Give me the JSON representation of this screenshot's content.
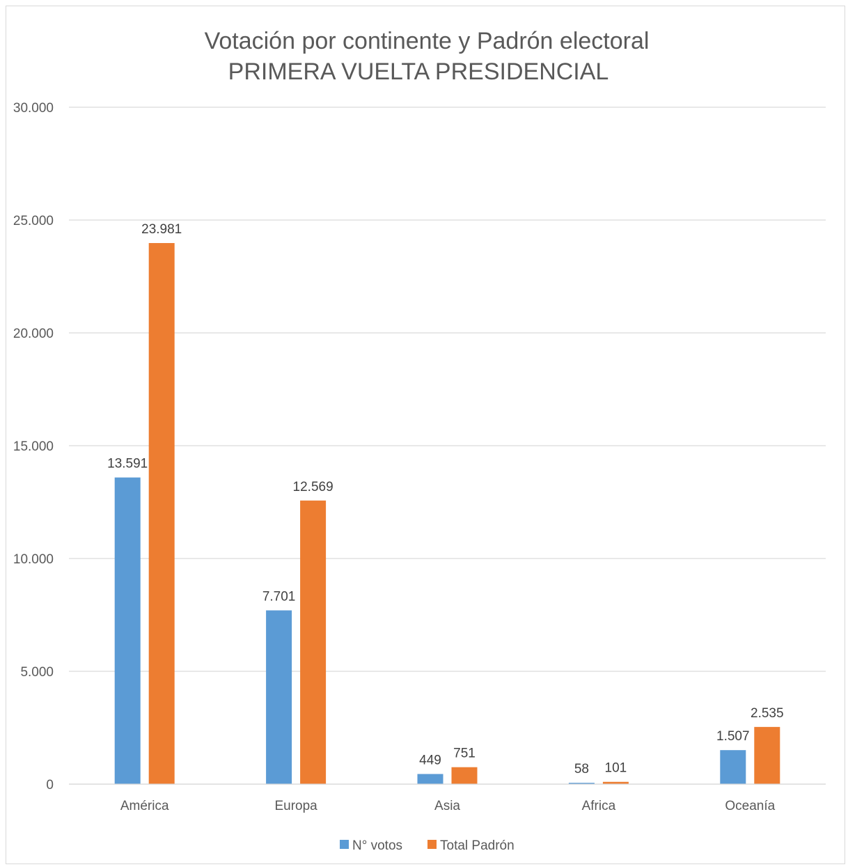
{
  "chart_data": {
    "type": "bar",
    "title": "Votación por continente y Padrón electoral",
    "subtitle": "PRIMERA VUELTA PRESIDENCIAL",
    "categories": [
      "América",
      "Europa",
      "Asia",
      "Africa",
      "Oceanía"
    ],
    "series": [
      {
        "name": "N° votos",
        "values": [
          13591,
          7701,
          449,
          58,
          1507
        ],
        "labels": [
          "13.591",
          "7.701",
          "449",
          "58",
          "1.507"
        ],
        "color": "#5b9bd5"
      },
      {
        "name": "Total Padrón",
        "values": [
          23981,
          12569,
          751,
          101,
          2535
        ],
        "labels": [
          "23.981",
          "12.569",
          "751",
          "101",
          "2.535"
        ],
        "color": "#ed7d31"
      }
    ],
    "ylim": [
      0,
      30000
    ],
    "yticks": [
      0,
      5000,
      10000,
      15000,
      20000,
      25000,
      30000
    ],
    "ytick_labels": [
      "0",
      "5.000",
      "10.000",
      "15.000",
      "20.000",
      "25.000",
      "30.000"
    ],
    "grid": true,
    "gridline_color": "#d9d9d9",
    "legend_position": "bottom"
  }
}
